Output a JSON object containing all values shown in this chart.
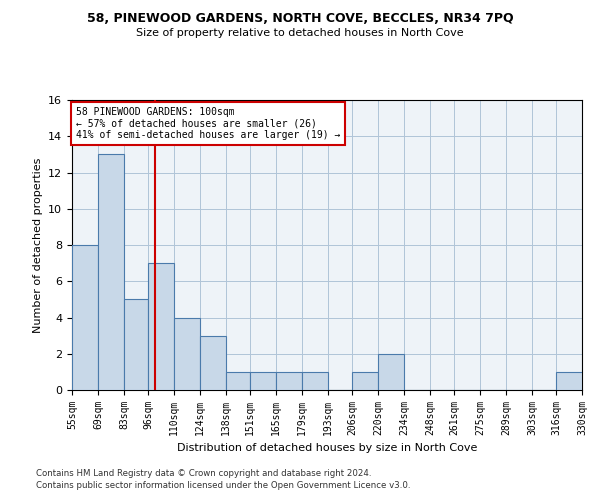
{
  "title": "58, PINEWOOD GARDENS, NORTH COVE, BECCLES, NR34 7PQ",
  "subtitle": "Size of property relative to detached houses in North Cove",
  "xlabel": "Distribution of detached houses by size in North Cove",
  "ylabel": "Number of detached properties",
  "bar_color": "#c8d8e8",
  "bar_edge_color": "#4a7aab",
  "vline_color": "#cc0000",
  "vline_x": 100,
  "annotation_text": "58 PINEWOOD GARDENS: 100sqm\n← 57% of detached houses are smaller (26)\n41% of semi-detached houses are larger (19) →",
  "annotation_box_color": "#ffffff",
  "annotation_box_edge": "#cc0000",
  "bins": [
    55,
    69,
    83,
    96,
    110,
    124,
    138,
    151,
    165,
    179,
    193,
    206,
    220,
    234,
    248,
    261,
    275,
    289,
    303,
    316,
    330
  ],
  "counts": [
    8,
    13,
    5,
    7,
    4,
    3,
    1,
    1,
    1,
    1,
    0,
    1,
    2,
    0,
    0,
    0,
    0,
    0,
    0,
    1
  ],
  "ylim": [
    0,
    16
  ],
  "yticks": [
    0,
    2,
    4,
    6,
    8,
    10,
    12,
    14,
    16
  ],
  "tick_labels": [
    "55sqm",
    "69sqm",
    "83sqm",
    "96sqm",
    "110sqm",
    "124sqm",
    "138sqm",
    "151sqm",
    "165sqm",
    "179sqm",
    "193sqm",
    "206sqm",
    "220sqm",
    "234sqm",
    "248sqm",
    "261sqm",
    "275sqm",
    "289sqm",
    "303sqm",
    "316sqm",
    "330sqm"
  ],
  "grid_color": "#b0c4d8",
  "background_color": "#eef3f8",
  "footer1": "Contains HM Land Registry data © Crown copyright and database right 2024.",
  "footer2": "Contains public sector information licensed under the Open Government Licence v3.0."
}
